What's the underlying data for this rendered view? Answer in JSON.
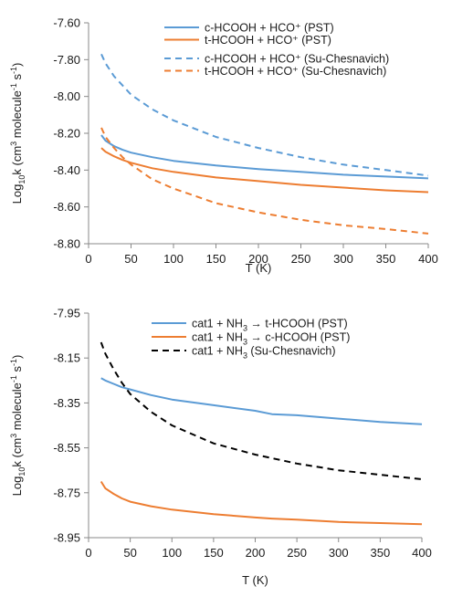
{
  "colors": {
    "blue": "#5B9BD5",
    "orange": "#ED7D31",
    "black": "#000000",
    "axis": "#888888"
  },
  "chart_data": [
    {
      "type": "line",
      "xlabel": "T (K)",
      "ylabel": {
        "base": "Log",
        "sub": "10",
        "mid": "k (cm",
        "sup1": "3",
        "mid2": " molecule",
        "sup2": "-1",
        "mid3": " s",
        "sup3": "-1",
        "end": ")"
      },
      "xlim": [
        0,
        400
      ],
      "ylim": [
        -8.8,
        -7.6
      ],
      "xticks": [
        "0",
        "50",
        "100",
        "150",
        "200",
        "250",
        "300",
        "350",
        "400"
      ],
      "yticks": [
        "-7.60",
        "-7.80",
        "-8.00",
        "-8.20",
        "-8.40",
        "-8.60",
        "-8.80"
      ],
      "yticks_values": [
        -7.6,
        -7.8,
        -8.0,
        -8.2,
        -8.4,
        -8.6,
        -8.8
      ],
      "grid": false,
      "legend_position": "top-right",
      "series": [
        {
          "name": "c-HCOOH + HCO⁺ (PST)",
          "color": "#5B9BD5",
          "dash": "solid",
          "x": [
            15,
            20,
            30,
            40,
            50,
            75,
            100,
            150,
            200,
            250,
            300,
            350,
            400
          ],
          "y": [
            -8.21,
            -8.24,
            -8.27,
            -8.29,
            -8.305,
            -8.33,
            -8.35,
            -8.375,
            -8.395,
            -8.41,
            -8.425,
            -8.435,
            -8.445
          ]
        },
        {
          "name": "t-HCOOH + HCO⁺ (PST)",
          "color": "#ED7D31",
          "dash": "solid",
          "x": [
            15,
            20,
            30,
            40,
            50,
            75,
            100,
            150,
            200,
            250,
            300,
            350,
            400
          ],
          "y": [
            -8.28,
            -8.3,
            -8.325,
            -8.345,
            -8.36,
            -8.39,
            -8.41,
            -8.44,
            -8.46,
            -8.48,
            -8.495,
            -8.51,
            -8.52
          ]
        },
        {
          "name": "c-HCOOH + HCO⁺ (Su-Chesnavich)",
          "color": "#5B9BD5",
          "dash": "dashed",
          "x": [
            15,
            20,
            30,
            40,
            50,
            75,
            100,
            150,
            200,
            250,
            300,
            350,
            400
          ],
          "y": [
            -7.77,
            -7.82,
            -7.89,
            -7.94,
            -7.99,
            -8.07,
            -8.13,
            -8.22,
            -8.28,
            -8.33,
            -8.37,
            -8.4,
            -8.43
          ]
        },
        {
          "name": "t-HCOOH + HCO⁺ (Su-Chesnavich)",
          "color": "#ED7D31",
          "dash": "dashed",
          "x": [
            15,
            20,
            30,
            40,
            50,
            75,
            100,
            150,
            200,
            250,
            300,
            350,
            400
          ],
          "y": [
            -8.17,
            -8.22,
            -8.28,
            -8.33,
            -8.37,
            -8.45,
            -8.5,
            -8.58,
            -8.63,
            -8.67,
            -8.7,
            -8.72,
            -8.745
          ]
        }
      ]
    },
    {
      "type": "line",
      "xlabel": "T (K)",
      "ylabel": {
        "base": "Log",
        "sub": "10",
        "mid": "k (cm",
        "sup1": "3",
        "mid2": " molecule",
        "sup2": "-1",
        "mid3": " s",
        "sup3": "-1",
        "end": ")"
      },
      "xlim": [
        0,
        400
      ],
      "ylim": [
        -8.95,
        -7.95
      ],
      "xticks": [
        "0",
        "50",
        "100",
        "150",
        "200",
        "250",
        "300",
        "350",
        "400"
      ],
      "yticks": [
        "-7.95",
        "-8.15",
        "-8.35",
        "-8.55",
        "-8.75",
        "-8.95"
      ],
      "yticks_values": [
        -7.95,
        -8.15,
        -8.35,
        -8.55,
        -8.75,
        -8.95
      ],
      "grid": false,
      "legend_position": "top-right",
      "series": [
        {
          "name": "cat1 + NH3 → t-HCOOH (PST)",
          "label_parts": [
            "cat1 + NH",
            "3",
            " → t-HCOOH (PST)"
          ],
          "color": "#5B9BD5",
          "dash": "solid",
          "x": [
            15,
            20,
            30,
            40,
            50,
            75,
            100,
            150,
            200,
            220,
            250,
            300,
            350,
            400
          ],
          "y": [
            -8.24,
            -8.25,
            -8.265,
            -8.28,
            -8.29,
            -8.315,
            -8.335,
            -8.36,
            -8.385,
            -8.4,
            -8.405,
            -8.42,
            -8.435,
            -8.445
          ]
        },
        {
          "name": "cat1 + NH3 → c-HCOOH (PST)",
          "label_parts": [
            "cat1 + NH",
            "3",
            " → c-HCOOH (PST)"
          ],
          "color": "#ED7D31",
          "dash": "solid",
          "x": [
            15,
            20,
            30,
            40,
            50,
            75,
            100,
            150,
            200,
            220,
            250,
            300,
            350,
            400
          ],
          "y": [
            -8.7,
            -8.73,
            -8.755,
            -8.775,
            -8.79,
            -8.81,
            -8.825,
            -8.845,
            -8.86,
            -8.865,
            -8.87,
            -8.88,
            -8.885,
            -8.89
          ]
        },
        {
          "name": "cat1 + NH3 (Su-Chesnavich)",
          "label_parts": [
            "cat1 + NH",
            "3",
            " (Su-Chesnavich)"
          ],
          "color": "#000000",
          "dash": "dashed",
          "x": [
            15,
            20,
            30,
            40,
            50,
            75,
            100,
            150,
            200,
            250,
            300,
            350,
            400
          ],
          "y": [
            -8.08,
            -8.13,
            -8.2,
            -8.26,
            -8.31,
            -8.39,
            -8.45,
            -8.53,
            -8.58,
            -8.62,
            -8.65,
            -8.67,
            -8.69
          ]
        }
      ]
    }
  ]
}
